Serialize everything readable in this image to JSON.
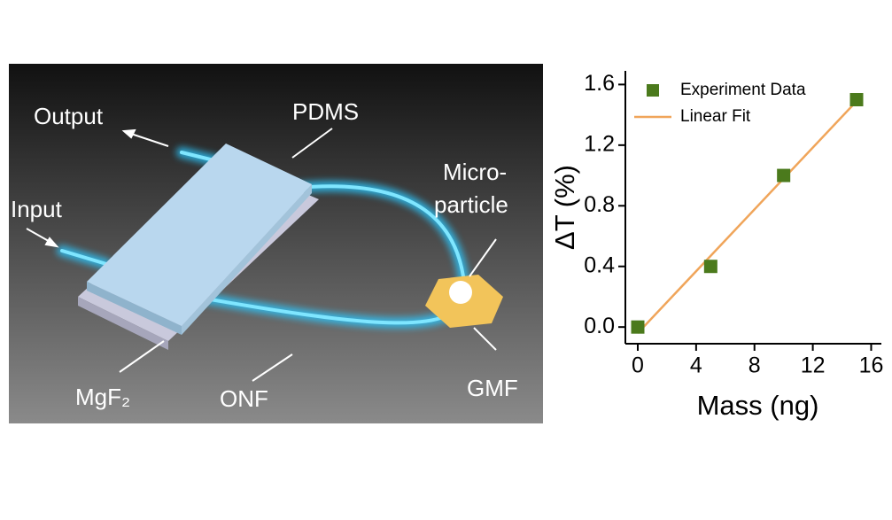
{
  "diagram": {
    "labels": {
      "output": "Output",
      "pdms": "PDMS",
      "input": "Input",
      "microparticle": [
        "Micro-",
        "particle"
      ],
      "mgf2": "MgF₂",
      "onf": "ONF",
      "gmf": "GMF"
    }
  },
  "chart_data": {
    "type": "scatter",
    "x_label": "Mass (ng)",
    "y_label": "ΔT (%)",
    "xlim": [
      -0.85,
      16.7
    ],
    "ylim": [
      -0.11,
      1.69
    ],
    "xticks": [
      0,
      4,
      8,
      12,
      16
    ],
    "yticks": [
      {
        "value": 0,
        "label": "0.0"
      },
      {
        "value": 0.4,
        "label": "0.4"
      },
      {
        "value": 0.8,
        "label": "0.8"
      },
      {
        "value": 1.2,
        "label": "1.2"
      },
      {
        "value": 1.6,
        "label": "1.6"
      }
    ],
    "legend": "top-left",
    "series": [
      {
        "name": "Experiment Data",
        "kind": "marker",
        "color": "#4b7a1c",
        "x": [
          0,
          5,
          10,
          15
        ],
        "values": [
          0,
          0.4,
          1.0,
          1.5
        ]
      },
      {
        "name": "Linear Fit",
        "kind": "line",
        "color": "#f0a55a",
        "x": [
          0,
          15
        ],
        "values": [
          -0.04,
          1.49
        ]
      }
    ]
  }
}
